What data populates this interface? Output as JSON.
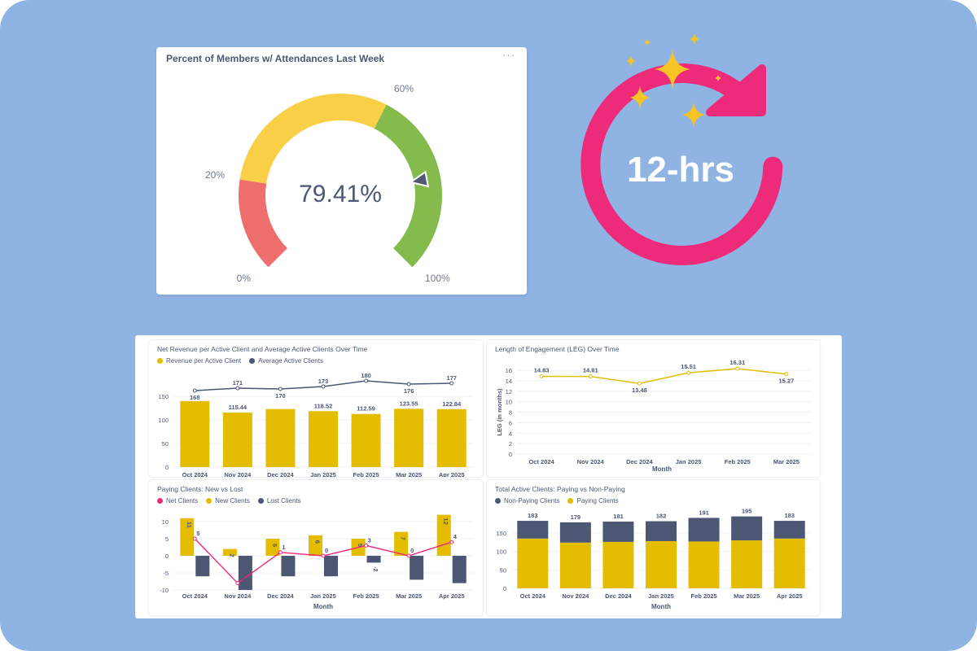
{
  "colors": {
    "background": "#8fb4e3",
    "gold": "#e4bd00",
    "navy": "#4c5773",
    "pink": "#ee2a7b",
    "gauge_red": "#ee6e6e",
    "gauge_yellow": "#f9cf48",
    "gauge_green": "#84bb4c",
    "sparkle": "#f7c325"
  },
  "gauge": {
    "title": "Percent of Members w/ Attendances Last Week",
    "menu": "···",
    "value_label": "79.41%",
    "value": 79.41,
    "labels": {
      "min": "0%",
      "t20": "20%",
      "t60": "60%",
      "max": "100%"
    }
  },
  "refresh": {
    "label": "12-hrs"
  },
  "chart_data": [
    {
      "type": "bar+line",
      "title": "Net Revenue per Active Client and Average Active Clients Over Time",
      "categories": [
        "Oct 2024",
        "Nov 2024",
        "Dec 2024",
        "Jan 2025",
        "Feb 2025",
        "Mar 2025",
        "Apr 2025"
      ],
      "series": [
        {
          "name": "Revenue per Active Client",
          "kind": "bar",
          "values": [
            140,
            115.44,
            123,
            118.52,
            112.59,
            123.55,
            122.84
          ],
          "labels": [
            "",
            "115.44",
            "",
            "118.52",
            "112.59",
            "123.55",
            "122.84"
          ]
        },
        {
          "name": "Average Active Clients",
          "kind": "line",
          "values": [
            168,
            171,
            170,
            173,
            180,
            176,
            177
          ],
          "labels": [
            "168",
            "171",
            "170",
            "173",
            "180",
            "176",
            "177"
          ]
        }
      ],
      "y_ticks": [
        "0",
        "50",
        "100",
        "150"
      ],
      "ylim": [
        0,
        180
      ]
    },
    {
      "type": "line",
      "title": "Length of Engagement (LEG) Over Time",
      "categories": [
        "Oct 2024",
        "Nov 2024",
        "Dec 2024",
        "Jan 2025",
        "Feb 2025",
        "Mar 2025"
      ],
      "values": [
        14.83,
        14.81,
        13.48,
        15.51,
        16.31,
        15.27
      ],
      "labels": [
        "14.83",
        "14.81",
        "13.48",
        "15.51",
        "16.31",
        "15.27"
      ],
      "xlabel": "Month",
      "ylabel": "LEG (in months)",
      "y_ticks": [
        "0",
        "2",
        "4",
        "6",
        "8",
        "10",
        "12",
        "14",
        "16"
      ],
      "ylim": [
        0,
        16
      ]
    },
    {
      "type": "bar+line",
      "title": "Paying Clients: New vs Lost",
      "categories": [
        "Oct 2024",
        "Nov 2024",
        "Dec 2024",
        "Jan 2025",
        "Feb 2025",
        "Mar 2025",
        "Apr 2025"
      ],
      "series": [
        {
          "name": "Net Clients",
          "kind": "line",
          "values": [
            5,
            -8,
            1,
            0,
            3,
            0,
            4
          ],
          "labels": [
            "5",
            "-8",
            "1",
            "0",
            "3",
            "0",
            "4"
          ]
        },
        {
          "name": "New Clients",
          "kind": "bar",
          "values": [
            11,
            2,
            5,
            6,
            5,
            7,
            12
          ],
          "labels": [
            "11",
            "2",
            "5",
            "6",
            "5",
            "7",
            "12"
          ]
        },
        {
          "name": "Lost Clients",
          "kind": "bar",
          "values": [
            -6,
            -10,
            -6,
            -6,
            -2,
            -7,
            -8
          ],
          "labels": [
            "",
            "",
            "",
            "",
            "-2",
            "",
            ""
          ]
        }
      ],
      "xlabel": "Month",
      "y_ticks": [
        "-10",
        "-5",
        "0",
        "5",
        "10"
      ],
      "ylim": [
        -10,
        12
      ]
    },
    {
      "type": "stacked-bar",
      "title": "Total Active Clients: Paying vs Non-Paying",
      "categories": [
        "Oct 2024",
        "Nov 2024",
        "Dec 2024",
        "Jan 2025",
        "Feb 2025",
        "Mar 2025",
        "Apr 2025"
      ],
      "series": [
        {
          "name": "Non-Paying Clients",
          "values": [
            48,
            55,
            55,
            54,
            64,
            65,
            48
          ]
        },
        {
          "name": "Paying Clients",
          "values": [
            135,
            124,
            126,
            128,
            127,
            130,
            135
          ]
        }
      ],
      "totals": [
        "183",
        "179",
        "181",
        "182",
        "191",
        "195",
        "183"
      ],
      "xlabel": "Month",
      "y_ticks": [
        "0",
        "50",
        "100",
        "150"
      ],
      "ylim": [
        0,
        200
      ]
    }
  ]
}
